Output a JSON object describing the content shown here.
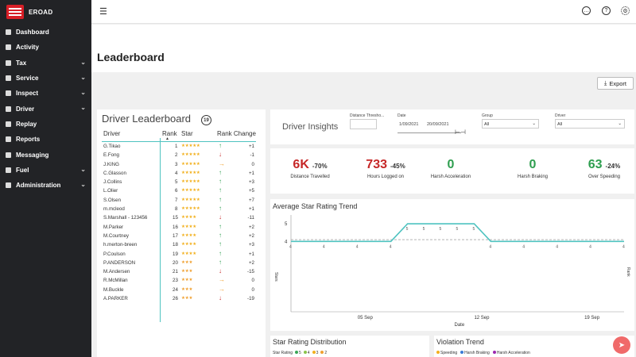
{
  "brand": {
    "name": "EROAD"
  },
  "sidebar": {
    "items": [
      {
        "label": "Dashboard",
        "icon": "grid-icon",
        "chevron": false
      },
      {
        "label": "Activity",
        "icon": "file-icon",
        "chevron": false
      },
      {
        "label": "Tax",
        "icon": "chart-icon",
        "chevron": true
      },
      {
        "label": "Service",
        "icon": "truck-icon",
        "chevron": true
      },
      {
        "label": "Inspect",
        "icon": "shield-icon",
        "chevron": true
      },
      {
        "label": "Driver",
        "icon": "user-icon",
        "chevron": true
      },
      {
        "label": "Replay",
        "icon": "play-icon",
        "chevron": false
      },
      {
        "label": "Reports",
        "icon": "document-icon",
        "chevron": false
      },
      {
        "label": "Messaging",
        "icon": "message-icon",
        "chevron": false
      },
      {
        "label": "Fuel",
        "icon": "fuel-icon",
        "chevron": true
      },
      {
        "label": "Administration",
        "icon": "users-icon",
        "chevron": true
      }
    ]
  },
  "page": {
    "title": "Leaderboard",
    "export_label": "Export"
  },
  "leaderboard": {
    "title": "Driver Leaderboard",
    "columns": {
      "driver": "Driver",
      "rank": "Rank",
      "star": "Star",
      "change": "Rank Change"
    },
    "rows": [
      {
        "name": "G.Tikao",
        "rank": "1",
        "stars": 5,
        "dir": "up",
        "change": "+1"
      },
      {
        "name": "E.Fong",
        "rank": "2",
        "stars": 5,
        "dir": "down",
        "change": "-1"
      },
      {
        "name": "J.KING",
        "rank": "3",
        "stars": 5,
        "dir": "right",
        "change": "0"
      },
      {
        "name": "C.Glasson",
        "rank": "4",
        "stars": 5,
        "dir": "up",
        "change": "+1"
      },
      {
        "name": "J.Collins",
        "rank": "5",
        "stars": 5,
        "dir": "up",
        "change": "+3"
      },
      {
        "name": "L.Olier",
        "rank": "6",
        "stars": 5,
        "dir": "up",
        "change": "+5"
      },
      {
        "name": "S.Olsen",
        "rank": "7",
        "stars": 5,
        "dir": "up",
        "change": "+7"
      },
      {
        "name": "m.mcleod",
        "rank": "8",
        "stars": 5,
        "dir": "up",
        "change": "+1"
      },
      {
        "name": "S.Marshall - 123456",
        "rank": "15",
        "stars": 4,
        "dir": "down",
        "change": "-11"
      },
      {
        "name": "M.Parker",
        "rank": "16",
        "stars": 4,
        "dir": "up",
        "change": "+2"
      },
      {
        "name": "M.Courtney",
        "rank": "17",
        "stars": 4,
        "dir": "up",
        "change": "+2"
      },
      {
        "name": "h.merton-breen",
        "rank": "18",
        "stars": 4,
        "dir": "up",
        "change": "+3"
      },
      {
        "name": "P.Coulson",
        "rank": "19",
        "stars": 4,
        "dir": "up",
        "change": "+1"
      },
      {
        "name": "P.ANDERSON",
        "rank": "20",
        "stars": 3,
        "dir": "up",
        "change": "+2"
      },
      {
        "name": "M.Andersen",
        "rank": "21",
        "stars": 3,
        "dir": "down",
        "change": "-15"
      },
      {
        "name": "R.McMillan",
        "rank": "23",
        "stars": 3,
        "dir": "right",
        "change": "0"
      },
      {
        "name": "M.Buckle",
        "rank": "24",
        "stars": 3,
        "dir": "right",
        "change": "0"
      },
      {
        "name": "A.PARKER",
        "rank": "26",
        "stars": 3,
        "dir": "down",
        "change": "-19"
      }
    ]
  },
  "insights": {
    "title": "Driver Insights",
    "filters": {
      "distance_label": "Distance Thresho...",
      "date_label": "Date",
      "date_from": "1/09/2021",
      "date_to": "20/09/2021",
      "group_label": "Group",
      "group_value": "All",
      "driver_label": "Driver",
      "driver_value": "All"
    },
    "kpis": [
      {
        "value": "6K",
        "pct": "-70%",
        "label": "Distance Travelled",
        "color": "#c62828"
      },
      {
        "value": "733",
        "pct": "-45%",
        "label": "Hours Logged on",
        "color": "#c62828"
      },
      {
        "value": "0",
        "pct": "",
        "label": "Harsh Acceleration",
        "color": "#2e9e4f"
      },
      {
        "value": "0",
        "pct": "",
        "label": "Harsh Braking",
        "color": "#2e9e4f"
      },
      {
        "value": "63",
        "pct": "-24%",
        "label": "Over Speeding",
        "color": "#2e9e4f"
      }
    ]
  },
  "chart_data": {
    "type": "line",
    "title": "Average Star Rating Trend",
    "xlabel": "Date",
    "ylabel": "Stars",
    "y2label": "Rank",
    "x_ticks": [
      "05 Sep",
      "12 Sep",
      "19 Sep"
    ],
    "y_ticks": [
      "4",
      "5"
    ],
    "series": [
      {
        "values": [
          4,
          4,
          4,
          4,
          4,
          4,
          4,
          5,
          5,
          5,
          5,
          5,
          4,
          4,
          4,
          4,
          4,
          4,
          4,
          4,
          4
        ],
        "labels": [
          "4",
          "4",
          "4",
          "4",
          "4",
          "4",
          "4",
          "5",
          "5",
          "5",
          "5",
          "5",
          "4",
          "4",
          "4",
          "4",
          "4",
          "4",
          "4",
          "4",
          "4"
        ]
      }
    ],
    "ylim": [
      0,
      5.5
    ]
  },
  "distribution": {
    "title": "Star Rating Distribution",
    "legend_label": "Star Rating",
    "legend": [
      {
        "label": "5",
        "color": "#3aa655"
      },
      {
        "label": "4",
        "color": "#8bc34a"
      },
      {
        "label": "3",
        "color": "#f2b01e"
      },
      {
        "label": "2",
        "color": "#f0a030"
      }
    ]
  },
  "violation": {
    "title": "Violation Trend",
    "legend": [
      {
        "label": "Speeding",
        "color": "#f2b01e"
      },
      {
        "label": "Harsh Braking",
        "color": "#3a7bd5"
      },
      {
        "label": "Harsh Acceleration",
        "color": "#9c27b0"
      }
    ]
  }
}
